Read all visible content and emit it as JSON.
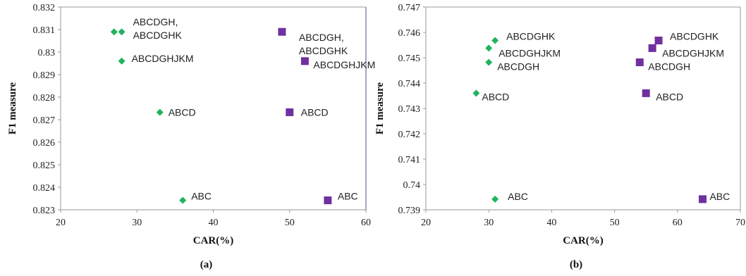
{
  "colors": {
    "diamond": "#22b35e",
    "square": "#7030a0"
  },
  "chart_data": [
    {
      "type": "scatter",
      "caption": "(a)",
      "xlabel": "CAR(%)",
      "ylabel": "F1 measure",
      "xlim": [
        20,
        60
      ],
      "ylim": [
        0.823,
        0.832
      ],
      "xticks": [
        20,
        30,
        40,
        50,
        60
      ],
      "yticks": [
        0.823,
        0.824,
        0.825,
        0.826,
        0.827,
        0.828,
        0.829,
        0.83,
        0.831,
        0.832
      ],
      "ytick_labels": [
        "0.823",
        "0.824",
        "0.825",
        "0.826",
        "0.827",
        "0.828",
        "0.829",
        "0.83",
        "0.831",
        "0.832"
      ],
      "series": [
        {
          "marker": "diamond",
          "points": [
            {
              "x": 27,
              "y": 0.8309
            },
            {
              "x": 28,
              "y": 0.8309
            },
            {
              "x": 28,
              "y": 0.8296
            },
            {
              "x": 33,
              "y": 0.82733
            },
            {
              "x": 36,
              "y": 0.82342
            }
          ]
        },
        {
          "marker": "square",
          "points": [
            {
              "x": 49,
              "y": 0.8309
            },
            {
              "x": 52,
              "y": 0.8296
            },
            {
              "x": 50,
              "y": 0.82733
            },
            {
              "x": 55,
              "y": 0.82342
            }
          ]
        }
      ],
      "annotations": [
        {
          "lines": [
            "ABCDGH,",
            "ABCDGHK"
          ],
          "x": 28,
          "y": 0.8309
        },
        {
          "lines": [
            "ABCDGHJKM"
          ],
          "x": 28,
          "y": 0.8296
        },
        {
          "lines": [
            "ABCD"
          ],
          "x": 33,
          "y": 0.82733
        },
        {
          "lines": [
            "ABC"
          ],
          "x": 36,
          "y": 0.82342
        },
        {
          "lines": [
            "ABCDGH,",
            "ABCDGHK"
          ],
          "x": 49,
          "y": 0.8309
        },
        {
          "lines": [
            "ABCDGHJKM"
          ],
          "x": 52,
          "y": 0.8296
        },
        {
          "lines": [
            "ABCD"
          ],
          "x": 50,
          "y": 0.82733
        },
        {
          "lines": [
            "ABC"
          ],
          "x": 55,
          "y": 0.82342
        }
      ]
    },
    {
      "type": "scatter",
      "caption": "(b)",
      "xlabel": "CAR(%)",
      "ylabel": "F1 measure",
      "xlim": [
        20,
        70
      ],
      "ylim": [
        0.739,
        0.747
      ],
      "xticks": [
        20,
        30,
        40,
        50,
        60,
        70
      ],
      "yticks": [
        0.739,
        0.74,
        0.741,
        0.742,
        0.743,
        0.744,
        0.745,
        0.746,
        0.747
      ],
      "ytick_labels": [
        "0.739",
        "0.74",
        "0.741",
        "0.742",
        "0.743",
        "0.744",
        "0.745",
        "0.746",
        "0.747"
      ],
      "series": [
        {
          "marker": "diamond",
          "points": [
            {
              "x": 31,
              "y": 0.74568
            },
            {
              "x": 30,
              "y": 0.74538
            },
            {
              "x": 30,
              "y": 0.74482
            },
            {
              "x": 28,
              "y": 0.7436
            },
            {
              "x": 31,
              "y": 0.73942
            }
          ]
        },
        {
          "marker": "square",
          "points": [
            {
              "x": 57,
              "y": 0.74568
            },
            {
              "x": 56,
              "y": 0.74538
            },
            {
              "x": 54,
              "y": 0.74482
            },
            {
              "x": 55,
              "y": 0.7436
            },
            {
              "x": 64,
              "y": 0.73942
            }
          ]
        }
      ],
      "annotations": [
        {
          "lines": [
            "ABCDGHK"
          ],
          "x": 31,
          "y": 0.74568
        },
        {
          "lines": [
            "ABCDGHJKM"
          ],
          "x": 30,
          "y": 0.74538
        },
        {
          "lines": [
            "ABCDGH"
          ],
          "x": 30,
          "y": 0.74482
        },
        {
          "lines": [
            "ABCD"
          ],
          "x": 28,
          "y": 0.7436
        },
        {
          "lines": [
            "ABC"
          ],
          "x": 31,
          "y": 0.73942
        },
        {
          "lines": [
            "ABCDGHK"
          ],
          "x": 57,
          "y": 0.74568
        },
        {
          "lines": [
            "ABCDGHJKM"
          ],
          "x": 56,
          "y": 0.74538
        },
        {
          "lines": [
            "ABCDGH"
          ],
          "x": 54,
          "y": 0.74482
        },
        {
          "lines": [
            "ABCD"
          ],
          "x": 55,
          "y": 0.7436
        },
        {
          "lines": [
            "ABC"
          ],
          "x": 64,
          "y": 0.73942
        }
      ]
    }
  ]
}
